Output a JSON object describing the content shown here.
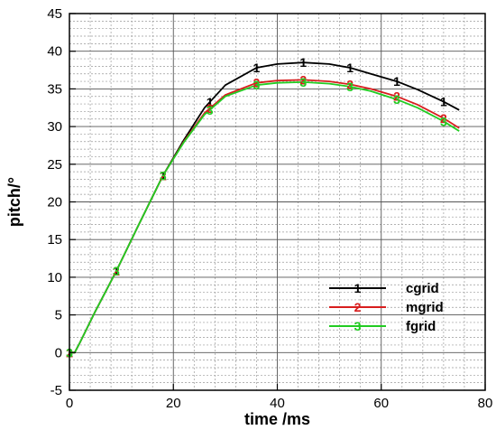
{
  "chart_data": {
    "type": "line",
    "xlabel": "time /ms",
    "ylabel": "pitch/°",
    "xlim": [
      0,
      80
    ],
    "ylim": [
      -5,
      45
    ],
    "x_major_ticks": [
      0,
      20,
      40,
      60,
      80
    ],
    "y_major_ticks": [
      -5,
      0,
      5,
      10,
      15,
      20,
      25,
      30,
      35,
      40,
      45
    ],
    "x_tick_labels": [
      "0",
      "20",
      "40",
      "60",
      "80"
    ],
    "y_tick_labels": [
      "-5",
      "0",
      "5",
      "10",
      "15",
      "20",
      "25",
      "30",
      "35",
      "40",
      "45"
    ],
    "grid": true,
    "legend_position": "bottom-right",
    "series": [
      {
        "name": "cgrid",
        "marker": "1",
        "color": "#000000",
        "x": [
          0,
          1,
          2,
          5,
          9,
          13,
          18,
          22,
          26,
          30,
          36,
          40,
          45,
          50,
          54,
          58,
          63,
          67,
          72,
          75
        ],
        "y": [
          0,
          0,
          1.3,
          5.5,
          10.8,
          16.5,
          23.5,
          28.2,
          32.5,
          35.5,
          37.8,
          38.3,
          38.5,
          38.3,
          37.8,
          37,
          36,
          34.9,
          33.3,
          32.2
        ],
        "marker_x": [
          0,
          9,
          18,
          27,
          36,
          45,
          54,
          63,
          72
        ]
      },
      {
        "name": "mgrid",
        "marker": "2",
        "color": "#d81e1e",
        "x": [
          0,
          1,
          2,
          5,
          9,
          13,
          18,
          22,
          26,
          30,
          36,
          40,
          45,
          50,
          54,
          58,
          63,
          67,
          72,
          75
        ],
        "y": [
          0,
          0,
          1.3,
          5.5,
          10.8,
          16.5,
          23.5,
          28,
          31.8,
          34.2,
          35.8,
          36.1,
          36.2,
          36,
          35.6,
          35,
          34,
          32.9,
          31.1,
          29.8
        ],
        "marker_x": [
          0,
          9,
          18,
          27,
          36,
          45,
          54,
          63,
          72
        ]
      },
      {
        "name": "fgrid",
        "marker": "3",
        "color": "#22cc22",
        "x": [
          0,
          1,
          2,
          5,
          9,
          13,
          18,
          22,
          26,
          30,
          36,
          40,
          45,
          50,
          54,
          58,
          63,
          67,
          72,
          75
        ],
        "y": [
          0,
          0,
          1.3,
          5.5,
          10.8,
          16.5,
          23.5,
          27.9,
          31.6,
          34,
          35.5,
          35.8,
          35.9,
          35.7,
          35.3,
          34.7,
          33.6,
          32.5,
          30.7,
          29.4
        ],
        "marker_x": [
          0,
          9,
          18,
          27,
          36,
          45,
          54,
          63,
          72
        ]
      }
    ]
  }
}
